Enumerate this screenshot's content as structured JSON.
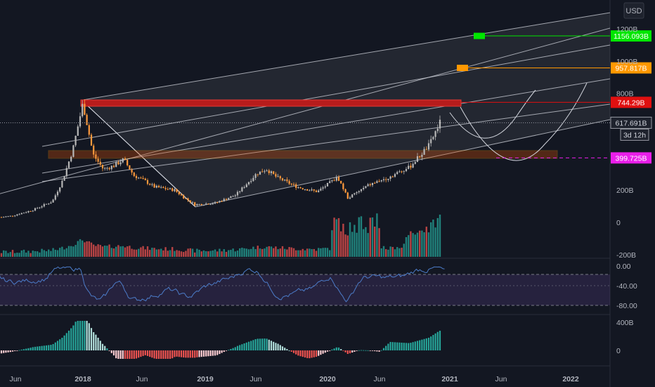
{
  "chart_data": {
    "type": "candlestick",
    "currency": "USD",
    "x_labels": [
      "Jun",
      "2018",
      "Jun",
      "2019",
      "Jun",
      "2020",
      "Jun",
      "2021",
      "Jun",
      "2022"
    ],
    "price_axis": {
      "ticks": [
        {
          "label": "1200B",
          "value": 1200
        },
        {
          "label": "1000B",
          "value": 1000
        },
        {
          "label": "800B",
          "value": 800
        },
        {
          "label": "200B",
          "value": 200
        },
        {
          "label": "0",
          "value": 0
        },
        {
          "label": "-200B",
          "value": -200
        }
      ]
    },
    "rsi_axis": {
      "ticks": [
        "0.00",
        "-40.00",
        "-80.00"
      ],
      "levels": [
        -20,
        -60
      ]
    },
    "osc_axis": {
      "ticks": [
        "400B",
        "0"
      ]
    },
    "countdown": "3d 12h",
    "last_price": {
      "label": "617.691B",
      "value": 617.691
    },
    "price_levels": [
      {
        "label": "1156.093B",
        "value": 1156.093,
        "color": "#00e600"
      },
      {
        "label": "957.817B",
        "value": 957.817,
        "color": "#ff9800"
      },
      {
        "label": "744.29B",
        "value": 744.29,
        "color": "#e01010"
      },
      {
        "label": "399.725B",
        "value": 399.725,
        "color": "#e91ee9"
      }
    ],
    "annotations": [
      "ascending parallel channel",
      "support zone",
      "resistance zone",
      "projected curves"
    ],
    "market_cap_path": [
      {
        "date": "2017-04",
        "value": 25
      },
      {
        "date": "2017-06",
        "value": 40
      },
      {
        "date": "2017-08",
        "value": 75
      },
      {
        "date": "2017-10",
        "value": 130
      },
      {
        "date": "2017-11",
        "value": 260
      },
      {
        "date": "2017-12",
        "value": 450
      },
      {
        "date": "2018-01",
        "value": 740
      },
      {
        "date": "2018-02",
        "value": 420
      },
      {
        "date": "2018-03",
        "value": 330
      },
      {
        "date": "2018-04",
        "value": 350
      },
      {
        "date": "2018-05",
        "value": 390
      },
      {
        "date": "2018-06",
        "value": 290
      },
      {
        "date": "2018-07",
        "value": 260
      },
      {
        "date": "2018-08",
        "value": 220
      },
      {
        "date": "2018-09",
        "value": 210
      },
      {
        "date": "2018-10",
        "value": 200
      },
      {
        "date": "2018-11",
        "value": 150
      },
      {
        "date": "2018-12",
        "value": 110
      },
      {
        "date": "2019-02",
        "value": 120
      },
      {
        "date": "2019-04",
        "value": 170
      },
      {
        "date": "2019-06",
        "value": 300
      },
      {
        "date": "2019-07",
        "value": 330
      },
      {
        "date": "2019-08",
        "value": 280
      },
      {
        "date": "2019-10",
        "value": 220
      },
      {
        "date": "2019-12",
        "value": 190
      },
      {
        "date": "2020-02",
        "value": 280
      },
      {
        "date": "2020-03",
        "value": 150
      },
      {
        "date": "2020-05",
        "value": 230
      },
      {
        "date": "2020-07",
        "value": 280
      },
      {
        "date": "2020-09",
        "value": 340
      },
      {
        "date": "2020-11",
        "value": 480
      },
      {
        "date": "2020-12",
        "value": 617.691
      }
    ]
  }
}
